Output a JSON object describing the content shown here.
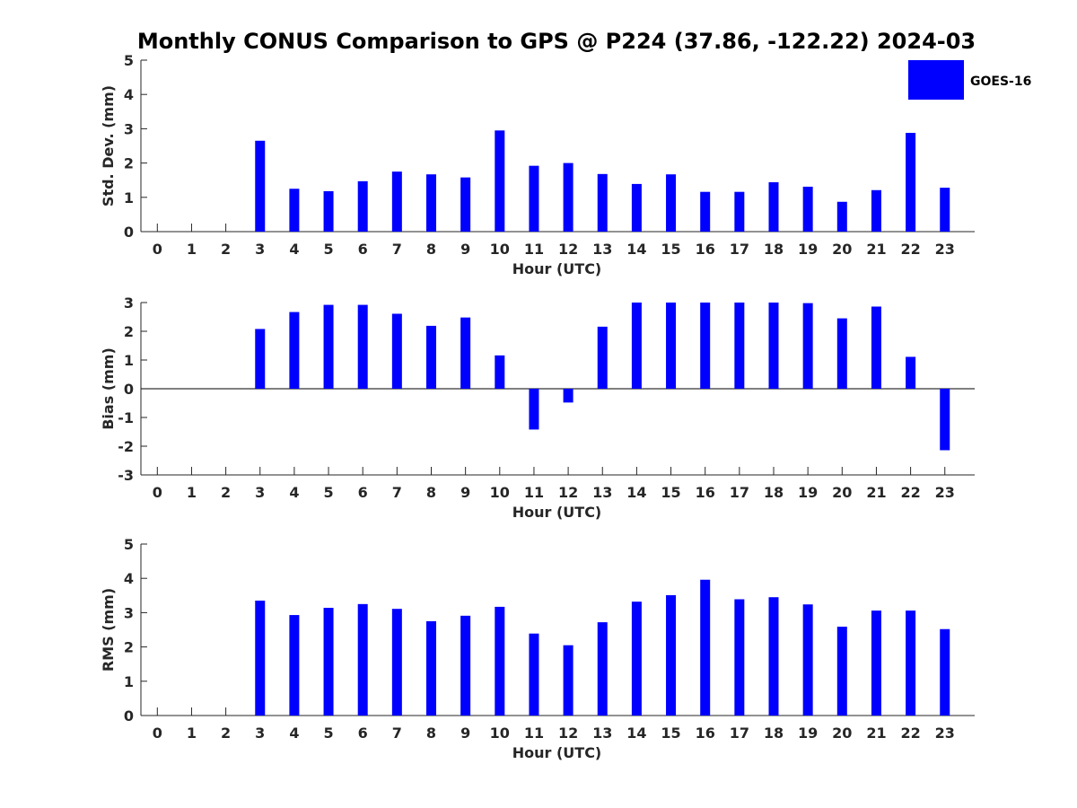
{
  "title": "Monthly CONUS Comparison to GPS @ P224 (37.86, -122.22) 2024-03",
  "legend": {
    "label": "GOES-16",
    "placement": "top-right",
    "color": "#0000ff"
  },
  "bar_color": "#0000ff",
  "chart_data": [
    {
      "type": "bar",
      "xlabel": "Hour (UTC)",
      "ylabel": "Std. Dev. (mm)",
      "ylim": [
        0,
        5
      ],
      "yticks": [
        "0",
        "1",
        "2",
        "3",
        "4",
        "5"
      ],
      "categories": [
        "0",
        "1",
        "2",
        "3",
        "4",
        "5",
        "6",
        "7",
        "8",
        "9",
        "10",
        "11",
        "12",
        "13",
        "14",
        "15",
        "16",
        "17",
        "18",
        "19",
        "20",
        "21",
        "22",
        "23"
      ],
      "series": [
        {
          "name": "GOES-16",
          "values": [
            null,
            null,
            null,
            2.65,
            1.25,
            1.18,
            1.47,
            1.75,
            1.67,
            1.58,
            2.95,
            1.92,
            2.0,
            1.68,
            1.39,
            1.67,
            1.16,
            1.16,
            1.44,
            1.31,
            0.87,
            1.21,
            2.88,
            1.28
          ]
        }
      ]
    },
    {
      "type": "bar",
      "xlabel": "Hour (UTC)",
      "ylabel": "Bias (mm)",
      "ylim": [
        -3,
        3
      ],
      "yticks": [
        "-3",
        "-2",
        "-1",
        "0",
        "1",
        "2",
        "3"
      ],
      "categories": [
        "0",
        "1",
        "2",
        "3",
        "4",
        "5",
        "6",
        "7",
        "8",
        "9",
        "10",
        "11",
        "12",
        "13",
        "14",
        "15",
        "16",
        "17",
        "18",
        "19",
        "20",
        "21",
        "22",
        "23"
      ],
      "series": [
        {
          "name": "GOES-16",
          "values": [
            null,
            null,
            null,
            2.08,
            2.67,
            2.92,
            2.92,
            2.61,
            2.19,
            2.48,
            1.16,
            -1.42,
            -0.48,
            2.16,
            3.0,
            3.0,
            3.0,
            3.0,
            3.0,
            2.98,
            2.45,
            2.86,
            1.11,
            -2.14
          ]
        }
      ]
    },
    {
      "type": "bar",
      "xlabel": "Hour (UTC)",
      "ylabel": "RMS (mm)",
      "ylim": [
        0,
        5
      ],
      "yticks": [
        "0",
        "1",
        "2",
        "3",
        "4",
        "5"
      ],
      "categories": [
        "0",
        "1",
        "2",
        "3",
        "4",
        "5",
        "6",
        "7",
        "8",
        "9",
        "10",
        "11",
        "12",
        "13",
        "14",
        "15",
        "16",
        "17",
        "18",
        "19",
        "20",
        "21",
        "22",
        "23"
      ],
      "series": [
        {
          "name": "GOES-16",
          "values": [
            null,
            null,
            null,
            3.35,
            2.93,
            3.14,
            3.25,
            3.11,
            2.75,
            2.91,
            3.17,
            2.39,
            2.05,
            2.72,
            3.32,
            3.51,
            3.96,
            3.39,
            3.45,
            3.24,
            2.59,
            3.06,
            3.06,
            2.52
          ]
        }
      ]
    }
  ]
}
